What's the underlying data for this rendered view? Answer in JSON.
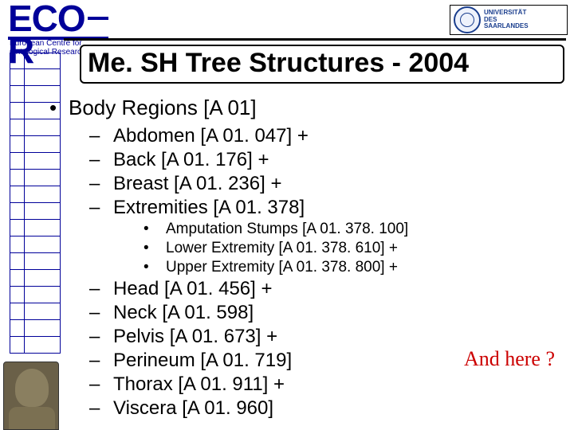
{
  "logo": {
    "eco": "ECO",
    "r": "R",
    "sub1": "European Centre for",
    "sub2": "Ontological Research"
  },
  "uni": {
    "line1": "UNIVERSITÄT",
    "line2": "DES",
    "line3": "SAARLANDES"
  },
  "title": "Me. SH Tree Structures - 2004",
  "l1": {
    "a": "Body Regions [A 01]"
  },
  "l2": {
    "a": "Abdomen [A 01. 047]  +",
    "b": "Back [A 01. 176]  +",
    "c": "Breast [A 01. 236]  +",
    "d": "Extremities [A 01. 378]",
    "e": "Head [A 01. 456]  +",
    "f": "Neck [A 01. 598]",
    "g": "Pelvis [A 01. 673]  +",
    "h": "Perineum [A 01. 719]",
    "i": "Thorax [A 01. 911]  +",
    "j": "Viscera [A 01. 960]"
  },
  "l3": {
    "a": "Amputation Stumps [A 01. 378. 100]",
    "b": "Lower Extremity [A 01. 378. 610]  +",
    "c": "Upper Extremity [A 01. 378. 800]  +"
  },
  "callout": "And here ?",
  "colors": {
    "brand": "#000099",
    "callout": "#cc0000",
    "text": "#000000",
    "bg": "#ffffff"
  }
}
